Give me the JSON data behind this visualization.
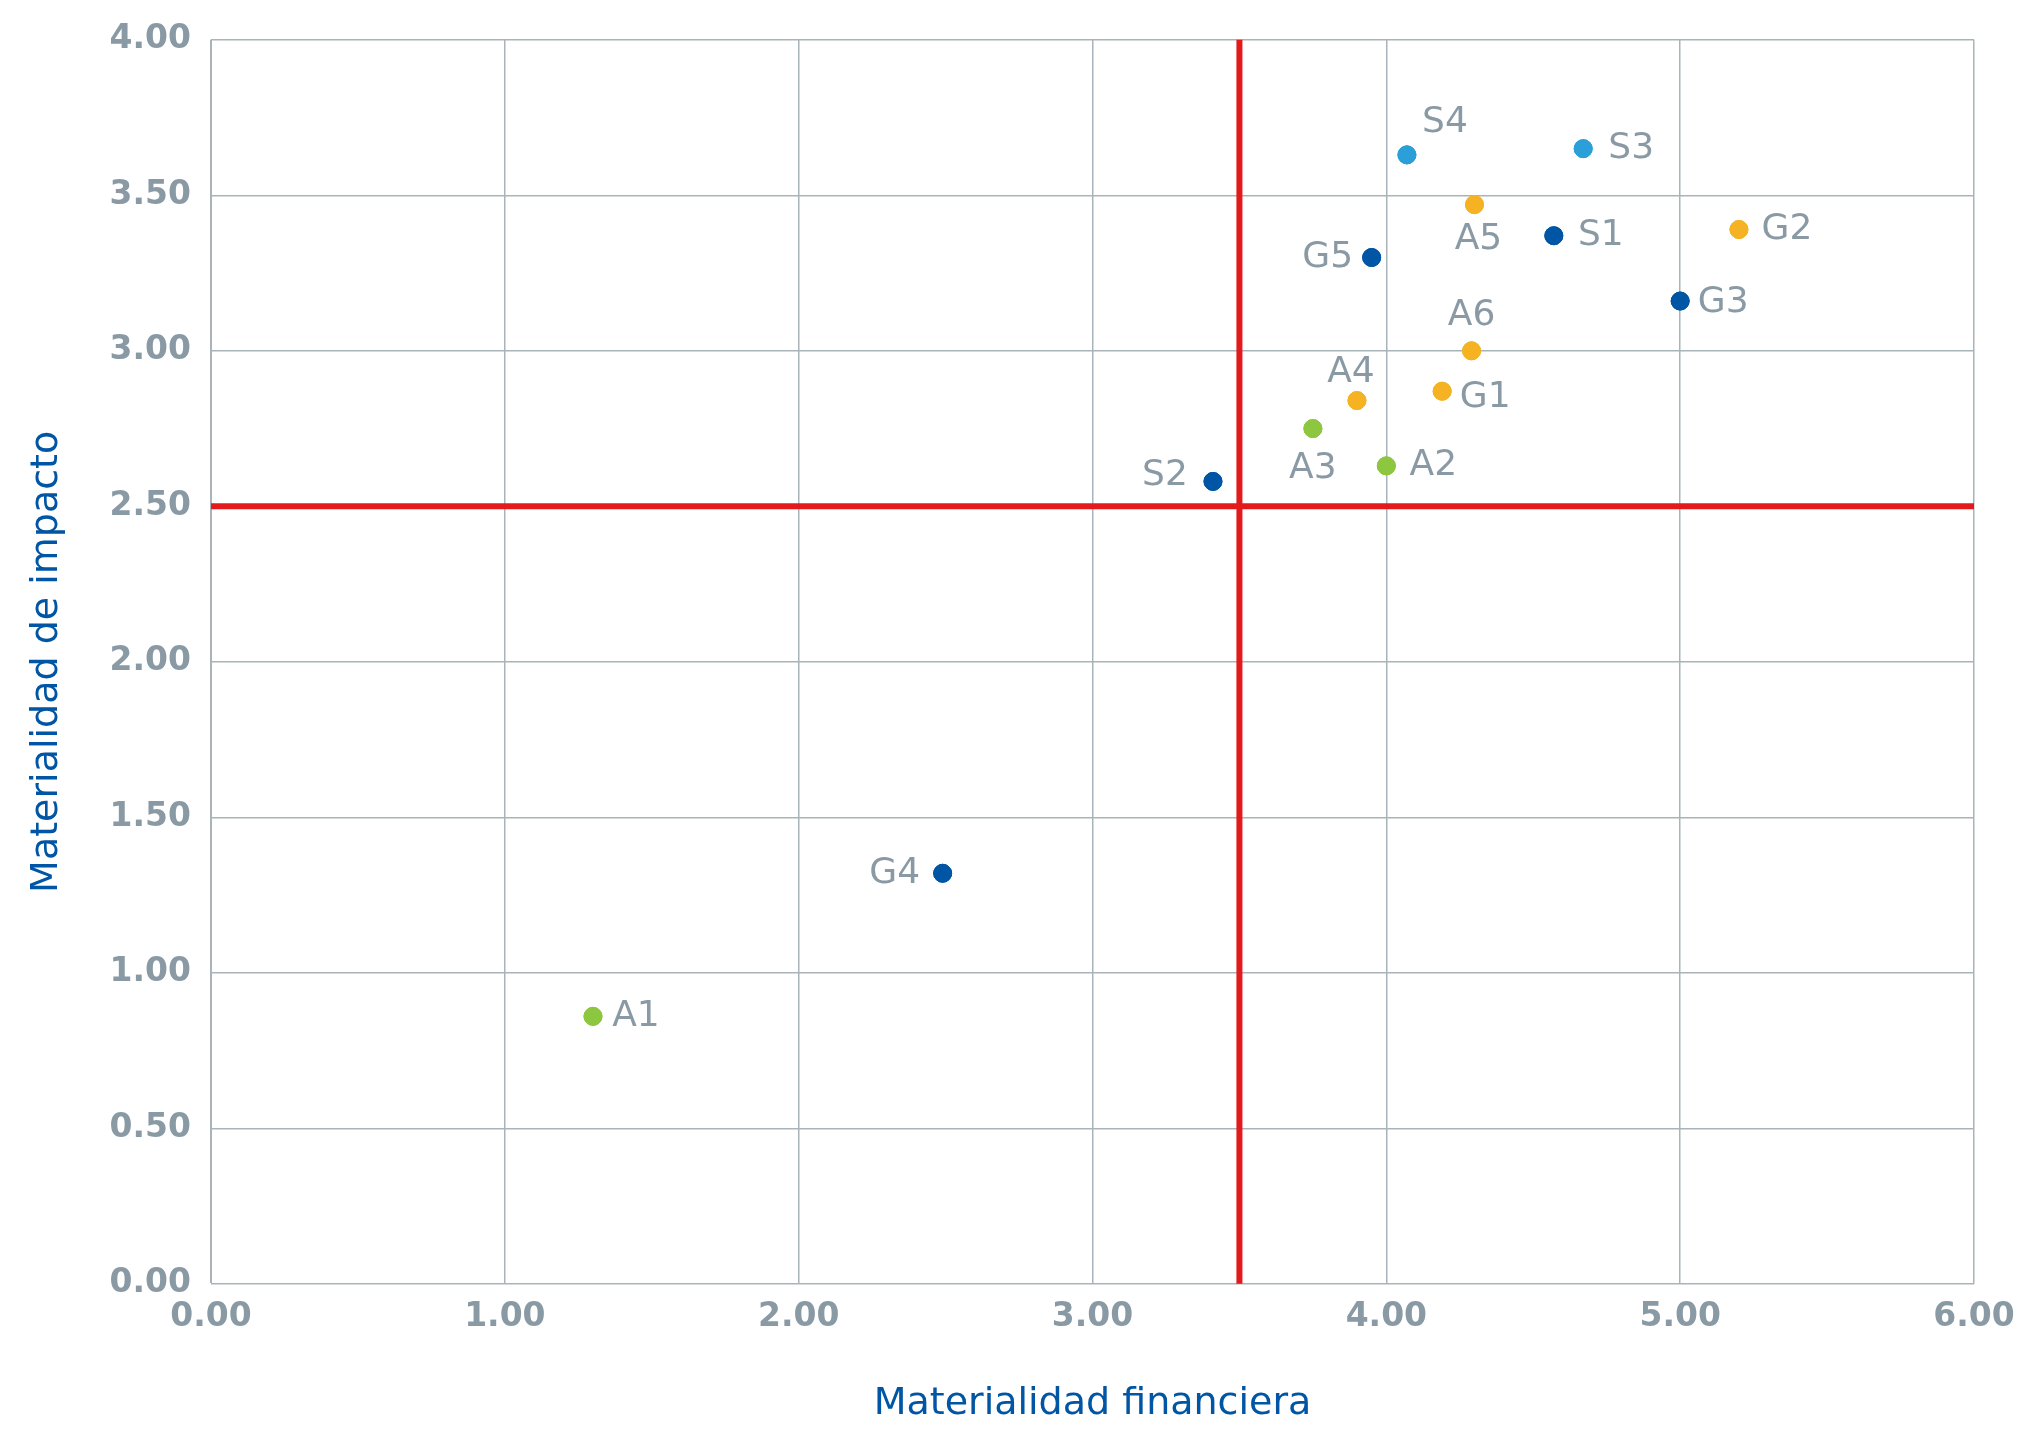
{
  "chart_data": {
    "type": "scatter",
    "xlabel": "Materialidad financiera",
    "ylabel": "Materialidad de impacto",
    "xlim": [
      0,
      6
    ],
    "xticks": [
      {
        "value": 0,
        "label": "0.00"
      },
      {
        "value": 1,
        "label": "1.00"
      },
      {
        "value": 2,
        "label": "2.00"
      },
      {
        "value": 3,
        "label": "3.00"
      },
      {
        "value": 4,
        "label": "4.00"
      },
      {
        "value": 5,
        "label": "5.00"
      },
      {
        "value": 6,
        "label": "6.00"
      }
    ],
    "ylim": [
      0,
      4
    ],
    "yticks": [
      {
        "value": 0,
        "label": "0.00"
      },
      {
        "value": 0.5,
        "label": "0.50"
      },
      {
        "value": 1,
        "label": "1.00"
      },
      {
        "value": 1.5,
        "label": "1.50"
      },
      {
        "value": 2,
        "label": "2.00"
      },
      {
        "value": 2.5,
        "label": "2.50"
      },
      {
        "value": 3,
        "label": "3.00"
      },
      {
        "value": 3.5,
        "label": "3.50"
      },
      {
        "value": 4,
        "label": "4.00"
      }
    ],
    "grid": true,
    "legend": false,
    "marker": "circle",
    "series": [
      {
        "color": "#8dc63f",
        "x": [
          1.3,
          4.0,
          3.75
        ],
        "values": [
          0.86,
          2.63,
          2.75
        ]
      },
      {
        "color": "#f5b324",
        "x": [
          3.9,
          4.3,
          4.29,
          4.19,
          5.2
        ],
        "values": [
          2.84,
          3.47,
          3.0,
          2.87,
          3.39
        ]
      },
      {
        "color": "#0055a4",
        "x": [
          4.57,
          3.41,
          5.0,
          2.49,
          3.95
        ],
        "values": [
          3.37,
          2.58,
          3.16,
          1.32,
          3.3
        ]
      },
      {
        "color": "#2a9fd8",
        "x": [
          4.67,
          4.07
        ],
        "values": [
          3.65,
          3.63
        ]
      }
    ],
    "ref_lines": [
      {
        "axis": "x",
        "value": 3.5,
        "color": "#e3191c"
      },
      {
        "axis": "y",
        "value": 2.5,
        "color": "#e3191c"
      }
    ],
    "annotations": [
      {
        "text": "A1",
        "x": 1.3,
        "y": 0.86
      },
      {
        "text": "A2",
        "x": 4.0,
        "y": 2.63
      },
      {
        "text": "A3",
        "x": 3.75,
        "y": 2.75
      },
      {
        "text": "A4",
        "x": 3.9,
        "y": 2.84
      },
      {
        "text": "A5",
        "x": 4.3,
        "y": 3.47
      },
      {
        "text": "A6",
        "x": 4.29,
        "y": 3.0
      },
      {
        "text": "G1",
        "x": 4.19,
        "y": 2.87
      },
      {
        "text": "G2",
        "x": 5.2,
        "y": 3.39
      },
      {
        "text": "G3",
        "x": 5.0,
        "y": 3.16
      },
      {
        "text": "G4",
        "x": 2.49,
        "y": 1.32
      },
      {
        "text": "G5",
        "x": 3.95,
        "y": 3.3
      },
      {
        "text": "S1",
        "x": 4.57,
        "y": 3.37
      },
      {
        "text": "S2",
        "x": 3.41,
        "y": 2.58
      },
      {
        "text": "S3",
        "x": 4.67,
        "y": 3.65
      },
      {
        "text": "S4",
        "x": 4.07,
        "y": 3.63
      }
    ]
  }
}
